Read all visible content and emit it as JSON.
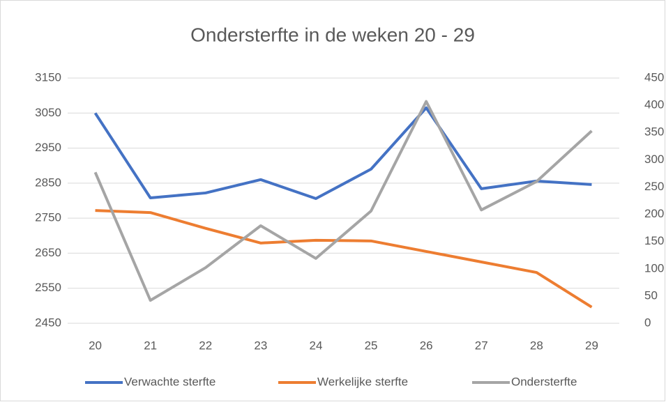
{
  "chart_data": {
    "type": "line",
    "title": "Ondersterfte in de weken 20 - 29",
    "categories": [
      "20",
      "21",
      "22",
      "23",
      "24",
      "25",
      "26",
      "27",
      "28",
      "29"
    ],
    "series": [
      {
        "name": "Verwachte sterfte",
        "color": "#4472c4",
        "values": [
          3050,
          2808,
          2822,
          2860,
          2806,
          2890,
          3065,
          2834,
          2856,
          2846
        ]
      },
      {
        "name": "Werkelijke sterfte",
        "color": "#ed7d31",
        "values": [
          2772,
          2766,
          2721,
          2679,
          2687,
          2685,
          2655,
          2625,
          2595,
          2496
        ]
      },
      {
        "name": "Ondersterfte",
        "color": "#a5a5a5",
        "axis": "y2",
        "values": [
          277,
          42,
          102,
          179,
          119,
          206,
          407,
          208,
          260,
          353
        ]
      }
    ],
    "ylim": [
      2450,
      3150
    ],
    "yticks": [
      2450,
      2550,
      2650,
      2750,
      2850,
      2950,
      3050,
      3150
    ],
    "y2lim": [
      0,
      450
    ],
    "y2ticks": [
      0,
      50,
      100,
      150,
      200,
      250,
      300,
      350,
      400,
      450
    ],
    "grid": true,
    "legend": "bottom"
  }
}
